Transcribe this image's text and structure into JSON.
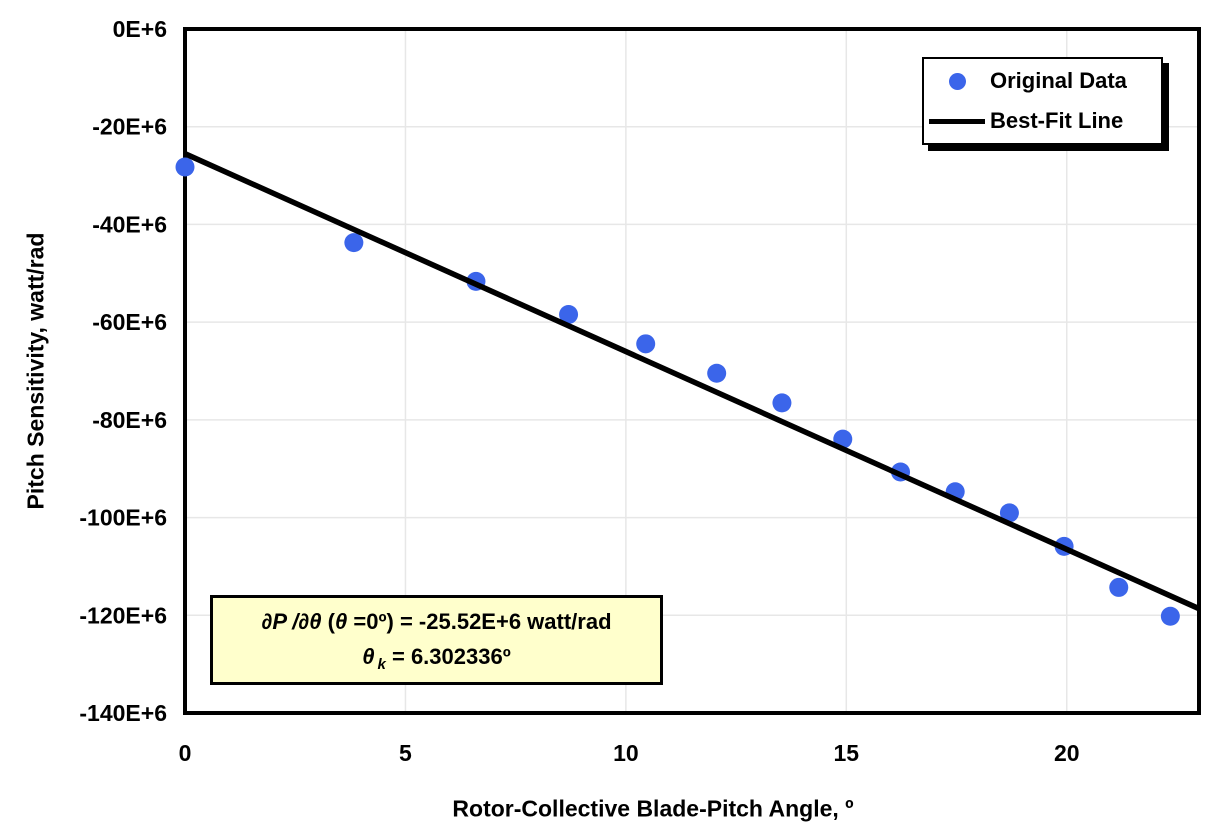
{
  "chart_data": {
    "type": "scatter",
    "title": "",
    "xlabel": "Rotor-Collective Blade-Pitch Angle, º",
    "ylabel": "Pitch Sensitivity, watt/rad",
    "xlim": [
      0,
      23.0
    ],
    "ylim": [
      -140,
      0
    ],
    "y_unit": "E+6 watt/rad (values below are in E+6)",
    "x_ticks": [
      0,
      5,
      10,
      15,
      20
    ],
    "y_ticks": [
      0,
      -20,
      -40,
      -60,
      -80,
      -100,
      -120,
      -140
    ],
    "y_tick_labels": [
      "0E+6",
      "-20E+6",
      "-40E+6",
      "-60E+6",
      "-80E+6",
      "-100E+6",
      "-120E+6",
      "-140E+6"
    ],
    "grid": true,
    "gridline_color": "#E7E7E7",
    "legend_position": "top-right",
    "series": [
      {
        "name": "Original Data",
        "type": "scatter",
        "color": "#3B65EA",
        "x": [
          0.0,
          3.83,
          6.6,
          8.7,
          10.45,
          12.06,
          13.54,
          14.92,
          16.23,
          17.47,
          18.7,
          19.94,
          21.18,
          22.35
        ],
        "y": [
          -28.24,
          -43.73,
          -51.66,
          -58.44,
          -64.44,
          -70.46,
          -76.53,
          -83.94,
          -90.67,
          -94.71,
          -99.04,
          -105.9,
          -114.3,
          -120.2
        ]
      },
      {
        "name": "Best-Fit Line",
        "type": "line",
        "color": "#000000",
        "x": [
          0,
          23.0
        ],
        "y": [
          -25.52,
          -118.65
        ]
      }
    ]
  },
  "legend": {
    "items": [
      {
        "label": "Original Data",
        "marker": "blue-dot"
      },
      {
        "label": "Best-Fit Line",
        "marker": "black-line"
      }
    ]
  },
  "annotation": {
    "slope_at_zero": "-25.52E+6 watt/rad",
    "theta_k": "6.302336º",
    "parts": {
      "p1": "∂P /∂θ",
      "p2": " (",
      "p3": "θ",
      "p4": " =0º) = -25.52E+6 watt/rad",
      "p5": "θ",
      "p6": "k",
      "p7": " = 6.302336º"
    }
  }
}
